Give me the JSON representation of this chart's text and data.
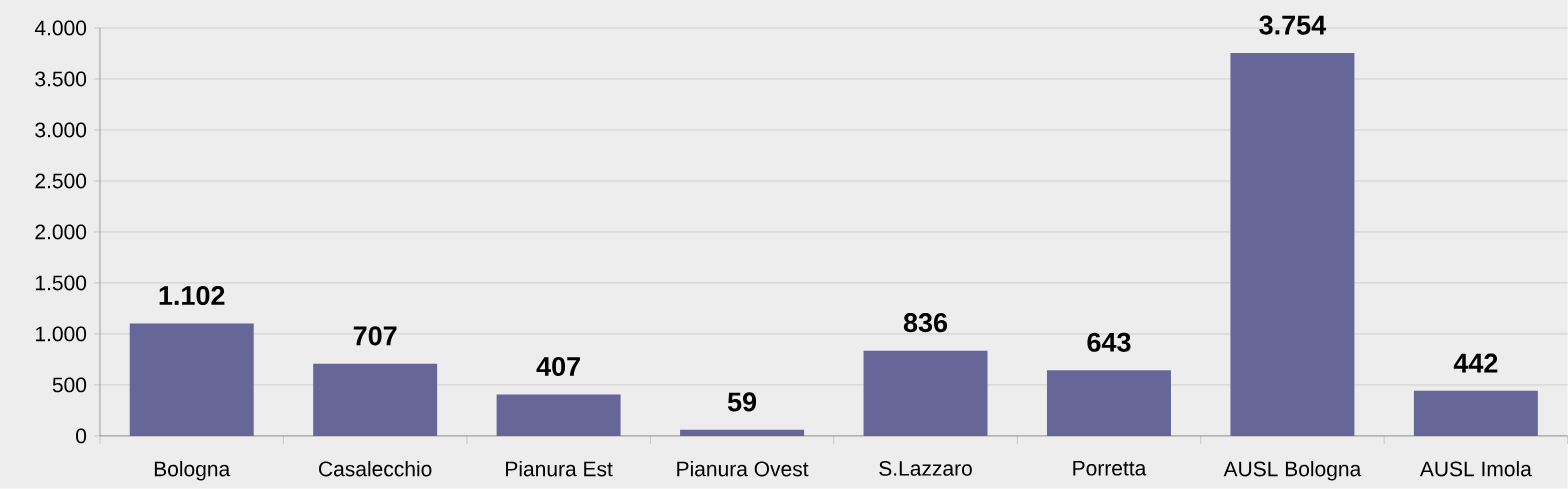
{
  "chart_data": {
    "type": "bar",
    "categories": [
      "Bologna",
      "Casalecchio",
      "Pianura Est",
      "Pianura Ovest",
      "S.Lazzaro",
      "Porretta",
      "AUSL Bologna",
      "AUSL Imola"
    ],
    "values": [
      1102,
      707,
      407,
      59,
      836,
      643,
      3754,
      442
    ],
    "value_labels": [
      "1.102",
      "707",
      "407",
      "59",
      "836",
      "643",
      "3.754",
      "442"
    ],
    "color": "#666699",
    "ylim": [
      0,
      4000
    ],
    "yticks": [
      0,
      500,
      {
        "value": 1000,
        "label": "1.000"
      },
      {
        "value": 1500,
        "label": "1.500"
      },
      {
        "value": 2000,
        "label": "2.000"
      },
      {
        "value": 2500,
        "label": "2.500"
      },
      {
        "value": 3000,
        "label": "3.000"
      },
      {
        "value": 3500,
        "label": "3.500"
      },
      {
        "value": 4000,
        "label": "4.000"
      }
    ],
    "grid": "y"
  }
}
